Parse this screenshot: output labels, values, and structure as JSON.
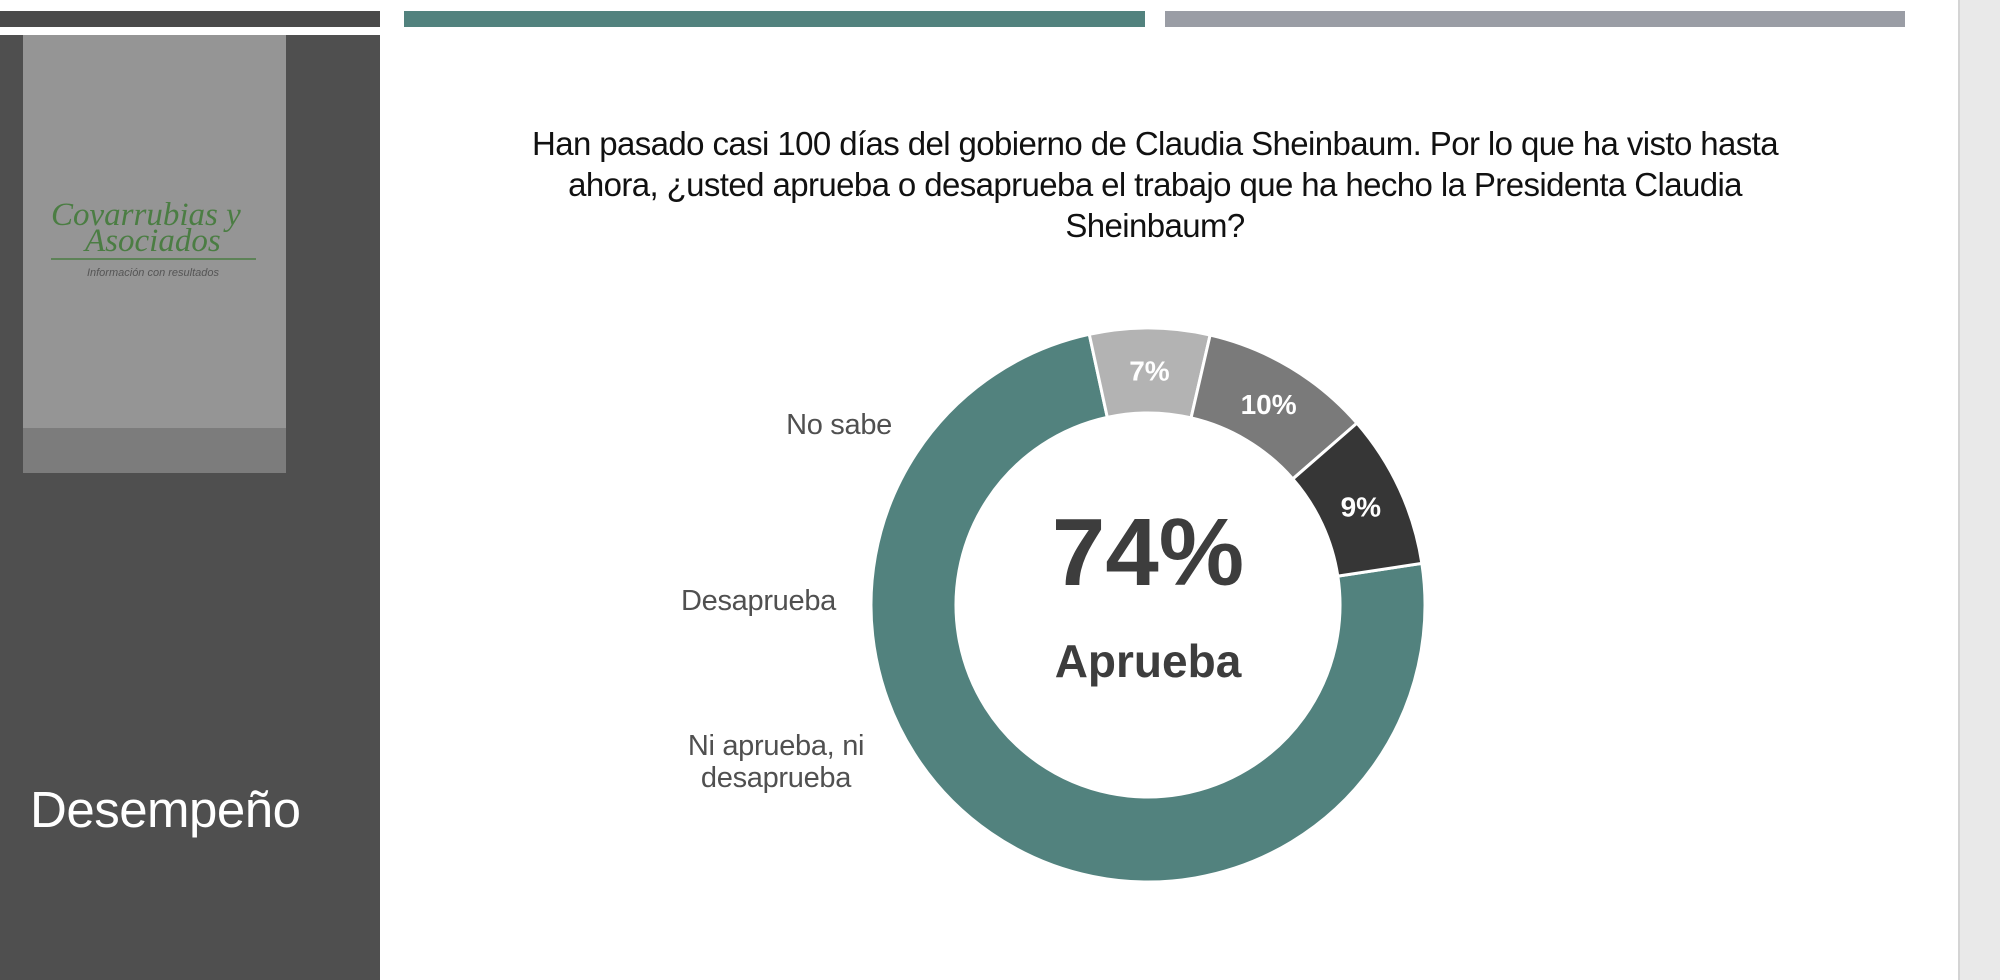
{
  "colors": {
    "aprueba": "#52827e",
    "no_sabe": "#363636",
    "desaprueba": "#7a7a7a",
    "ni_ni": "#b3b3b3",
    "top_bar_left": "#4a4a4a",
    "top_bar_mid": "#52827e",
    "top_bar_right": "#9a9da5",
    "sidebar": "#4f4f4f",
    "logo_green": "#4b7d43"
  },
  "sidebar": {
    "logo": {
      "line1": "Covarrubias y",
      "line2": "Asociados",
      "tagline": "Información con resultados"
    },
    "section_title": "Desempeño"
  },
  "chart_data": {
    "type": "pie",
    "variant": "donut",
    "title": "Han pasado casi 100 días del gobierno de Claudia Sheinbaum. Por lo que ha visto hasta ahora, ¿usted aprueba o desaprueba el trabajo que ha hecho la Presidenta Claudia Sheinbaum?",
    "slices": [
      {
        "key": "aprueba",
        "label": "Aprueba",
        "value": 74,
        "value_label": "74%",
        "color": "#52827e"
      },
      {
        "key": "ni_ni",
        "label": "Ni aprueba, ni desaprueba",
        "label_lines": [
          "Ni aprueba, ni",
          "desaprueba"
        ],
        "value": 7,
        "value_label": "7%",
        "color": "#b3b3b3"
      },
      {
        "key": "desaprueba",
        "label": "Desaprueba",
        "label_lines": [
          "Desaprueba"
        ],
        "value": 10,
        "value_label": "10%",
        "color": "#7a7a7a"
      },
      {
        "key": "no_sabe",
        "label": "No sabe",
        "label_lines": [
          "No sabe"
        ],
        "value": 9,
        "value_label": "9%",
        "color": "#363636"
      }
    ],
    "center_label": {
      "value": "74%",
      "text": "Aprueba"
    },
    "legend": "none"
  }
}
